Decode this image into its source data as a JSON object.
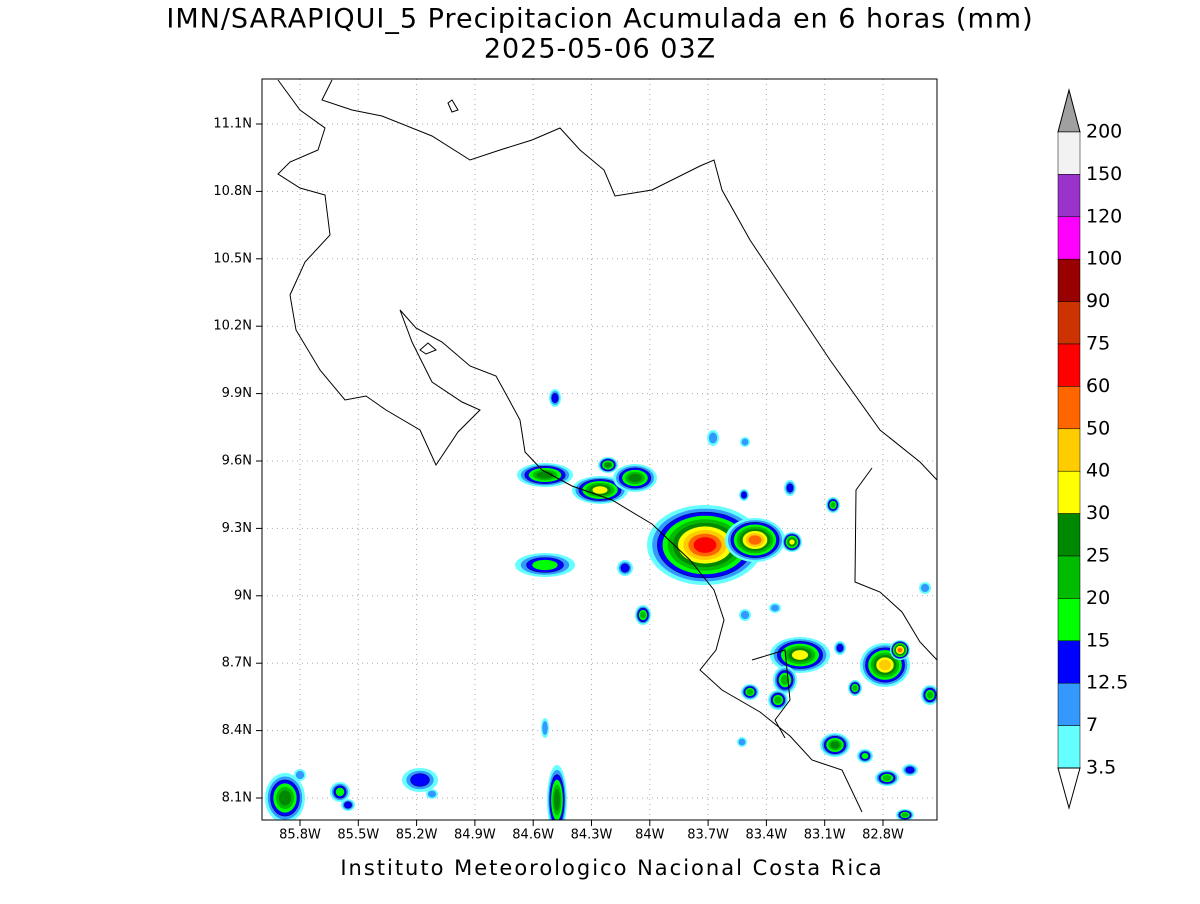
{
  "title": "IMN/SARAPIQUI_5 Precipitacion Acumulada en 6 horas (mm)",
  "subtitle": "2025-05-06 03Z",
  "lat_labels": [
    "11.1N",
    "10.8N",
    "10.5N",
    "10.2N",
    "9.9N",
    "9.6N",
    "9.3N",
    "9N",
    "8.7N",
    "8.4N",
    "8.1N"
  ],
  "lon_labels": [
    "85.8W",
    "85.5W",
    "85.2W",
    "84.9W",
    "84.6W",
    "84.3W",
    "84W",
    "83.7W",
    "83.4W",
    "83.1W",
    "82.8W"
  ],
  "colorbar": {
    "labels": [
      "200",
      "150",
      "120",
      "100",
      "90",
      "75",
      "60",
      "50",
      "40",
      "30",
      "25",
      "20",
      "15",
      "12.5",
      "7",
      "3.5"
    ],
    "colors": [
      "#f2f2f2",
      "#9933cc",
      "#ff00ff",
      "#990000",
      "#cc3300",
      "#ff0000",
      "#ff6600",
      "#ffcc00",
      "#ffff00",
      "#008800",
      "#00bb00",
      "#00ff00",
      "#0000ff",
      "#3399ff",
      "#66ffff"
    ],
    "over_color": "#a0a0a0",
    "under_color": "#ffffff"
  },
  "footer": "Instituto Meteorologico Nacional Costa Rica"
}
